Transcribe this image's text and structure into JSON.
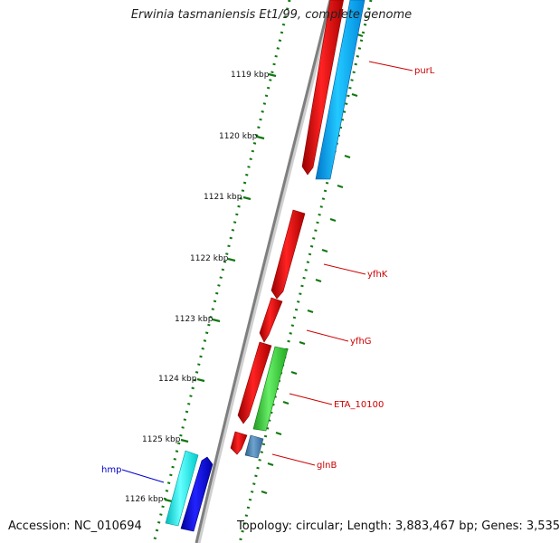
{
  "title": "Erwinia tasmaniensis Et1/99, complete genome",
  "footer": {
    "accession": "Accession: NC_010694",
    "summary": "Topology: circular; Length: 3,883,467 bp; Genes: 3,535"
  },
  "scale": {
    "ticks": [
      "1119 kbp",
      "1120 kbp",
      "1121 kbp",
      "1122 kbp",
      "1123 kbp",
      "1124 kbp",
      "1125 kbp",
      "1126 kbp"
    ]
  },
  "genes": [
    {
      "name": "purL",
      "color": "#cc0000"
    },
    {
      "name": "yfhK",
      "color": "#cc0000"
    },
    {
      "name": "yfhG",
      "color": "#cc0000"
    },
    {
      "name": "ETA_10100",
      "color": "#cc0000"
    },
    {
      "name": "glnB",
      "color": "#cc0000"
    },
    {
      "name": "hmp",
      "color": "#0000cc"
    }
  ],
  "colors": {
    "cds_red": "#ff0000",
    "cds_blue": "#0000ff",
    "light_blue": "#00a0ff",
    "cyan": "#00ffff",
    "green": "#33cc33",
    "steel": "#4682b4",
    "backbone": "#808080",
    "dots": "#117711"
  }
}
